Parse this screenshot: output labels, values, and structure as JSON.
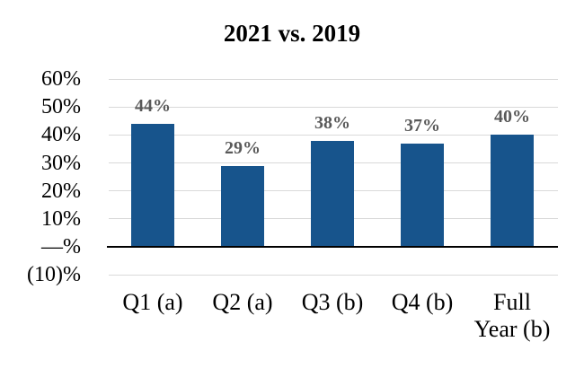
{
  "title": "2021 vs. 2019",
  "chart_data": {
    "type": "bar",
    "title": "2021 vs. 2019",
    "categories": [
      "Q1 (a)",
      "Q2 (a)",
      "Q3 (b)",
      "Q4 (b)",
      "Full\nYear (b)"
    ],
    "values": [
      44,
      29,
      38,
      37,
      40
    ],
    "value_labels": [
      "44%",
      "29%",
      "38%",
      "37%",
      "40%"
    ],
    "y_ticks": [
      {
        "value": 60,
        "label": "60%"
      },
      {
        "value": 50,
        "label": "50%"
      },
      {
        "value": 40,
        "label": "40%"
      },
      {
        "value": 30,
        "label": "30%"
      },
      {
        "value": 20,
        "label": "20%"
      },
      {
        "value": 10,
        "label": "10%"
      },
      {
        "value": 0,
        "label": "—%"
      },
      {
        "value": -10,
        "label": "(10)%"
      }
    ],
    "ylim": [
      -10,
      60
    ],
    "grid": true,
    "legend": "none",
    "xlabel": "",
    "ylabel": "",
    "colors": {
      "bar": "#17548C",
      "gridline": "#D9D9D9",
      "axis_line": "#000000",
      "value_label": "#595959",
      "text": "#000000"
    }
  }
}
